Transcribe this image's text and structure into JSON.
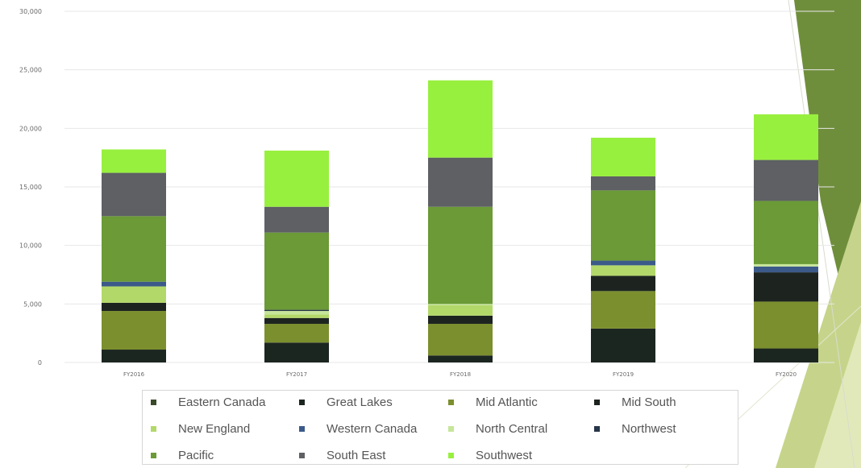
{
  "colors": {
    "background": "#ffffff",
    "gridline": "#e7e7e7",
    "tick_text": "#6a6a6a",
    "legend_text": "#555555",
    "deco_dark_green": "#6f8e3c",
    "deco_light_green": "#c5d48a",
    "deco_pale_green": "#e7eec6"
  },
  "chart_data": {
    "type": "bar",
    "stacked": true,
    "title": "",
    "xlabel": "",
    "ylabel": "",
    "ylim": [
      0,
      30000
    ],
    "yticks": [
      0,
      5000,
      10000,
      15000,
      20000,
      25000,
      30000
    ],
    "ytick_labels": [
      "0",
      "5,000",
      "10,000",
      "15,000",
      "20,000",
      "25,000",
      "30,000"
    ],
    "grid": true,
    "legend_position": "bottom",
    "categories": [
      "FY2016",
      "FY2017",
      "FY2018",
      "FY2019",
      "FY2020"
    ],
    "series": [
      {
        "name": "Eastern Canada",
        "color": "#3a4a2a",
        "values": [
          0,
          0,
          0,
          0,
          0
        ]
      },
      {
        "name": "Great Lakes",
        "color": "#1c2621",
        "values": [
          1100,
          1700,
          600,
          2900,
          1200
        ]
      },
      {
        "name": "Mid Atlantic",
        "color": "#7c8f2e",
        "values": [
          3300,
          1600,
          2700,
          3200,
          4000
        ]
      },
      {
        "name": "Mid South",
        "color": "#1d2420",
        "values": [
          700,
          500,
          700,
          1300,
          2500
        ]
      },
      {
        "name": "New England",
        "color": "#b3d86a",
        "values": [
          1400,
          300,
          900,
          900,
          0
        ]
      },
      {
        "name": "Western Canada",
        "color": "#3b5a8a",
        "values": [
          400,
          0,
          0,
          400,
          500
        ]
      },
      {
        "name": "North Central",
        "color": "#c6e69a",
        "values": [
          0,
          300,
          100,
          0,
          200
        ]
      },
      {
        "name": "Northwest",
        "color": "#26354a",
        "values": [
          0,
          100,
          0,
          0,
          0
        ]
      },
      {
        "name": "Pacific",
        "color": "#6b9a36",
        "values": [
          5600,
          6600,
          8300,
          6000,
          5400
        ]
      },
      {
        "name": "South East",
        "color": "#5e6064",
        "values": [
          3700,
          2200,
          4200,
          1200,
          3500
        ]
      },
      {
        "name": "Southwest",
        "color": "#98f03e",
        "values": [
          2000,
          4800,
          6600,
          3300,
          3900
        ]
      }
    ]
  }
}
